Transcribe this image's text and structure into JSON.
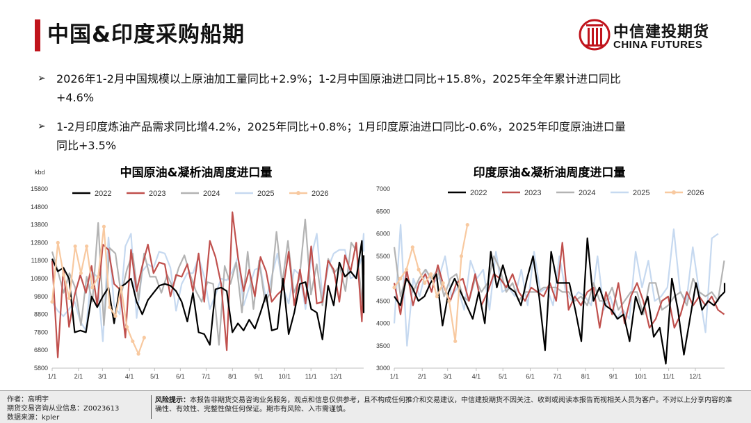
{
  "page_title": "中国&印度采购船期",
  "logo": {
    "cn": "中信建投期货",
    "en": "CHINA FUTURES"
  },
  "bullets": [
    {
      "line1": "2026年1-2月中国规模以上原油加工量同比+2.9%；1-2月中国原油进口同比+15.8%，2025年全年累计进口同比",
      "line2": "+4.6%"
    },
    {
      "line1": "1-2月印度炼油产品需求同比增4.2%，2025年同比+0.8%；1月印度原油进口同比-0.6%，2025年印度原油进口量",
      "line2": "同比+3.5%"
    }
  ],
  "footer": {
    "author": "作者：高明宇",
    "license": "期货交易咨询从业信息：Z0023613",
    "source": "数据来源：kpler",
    "risk_label": "风险提示：",
    "risk_text": "本报告非期货交易咨询业务服务，观点和信息仅供参考，且不构成任何推介和交易建议，中信建投期货不因关注、收到或阅读本报告而视相关人员为客户。不对以上分享内容的准确性、有效性、完整性做任何保证。期市有风险、入市需谨慎。"
  },
  "chart_data": [
    {
      "type": "line",
      "title": "中国原油&凝析油周度进口量",
      "ylabel": "kbd",
      "ylim": [
        5800,
        15800
      ],
      "yticks": [
        5800,
        6800,
        7800,
        8800,
        9800,
        10800,
        11800,
        12800,
        13800,
        14800,
        15800
      ],
      "xlim": [
        1,
        53
      ],
      "xtick_labels": [
        "1/1",
        "2/1",
        "3/1",
        "4/1",
        "5/1",
        "6/1",
        "7/1",
        "8/1",
        "9/1",
        "10/1",
        "11/1",
        "12/1"
      ],
      "xtick_weeks": [
        1,
        5.4,
        9.4,
        13.9,
        18.1,
        22.4,
        26.7,
        31.1,
        35.5,
        39.8,
        44.2,
        48.4
      ],
      "series": [
        {
          "name": "2022",
          "color": "#000000",
          "width": 2.2,
          "values": [
            11900,
            11200,
            11400,
            10800,
            7800,
            7900,
            7800,
            9800,
            9200,
            9800,
            10300,
            8300,
            10300,
            10500,
            10800,
            9500,
            8800,
            9600,
            10000,
            10400,
            10500,
            10400,
            10100,
            9500,
            8400,
            10000,
            7800,
            7700,
            7100,
            10200,
            10300,
            10100,
            7800,
            8300,
            7900,
            8500,
            8000,
            8900,
            9900,
            7900,
            8000,
            10800,
            7700,
            8900,
            10500,
            10600,
            9100,
            8900,
            7400,
            10400,
            9300,
            11700,
            10900,
            11200,
            10800,
            12900,
            8900,
            12100
          ],
          "step": 0.94
        },
        {
          "name": "2023",
          "color": "#c0504d",
          "width": 2.2,
          "values": [
            11800,
            6400,
            11400,
            8100,
            9900,
            11000,
            10000,
            11500,
            9300,
            12700,
            12400,
            10500,
            10200,
            7500,
            12400,
            10100,
            11500,
            12700,
            11100,
            11700,
            11600,
            9800,
            11000,
            10900,
            11600,
            10100,
            12200,
            9500,
            12900,
            12000,
            10500,
            6800,
            14500,
            12000,
            10100,
            11300,
            9800,
            12000,
            11200,
            9500,
            9900,
            10200,
            12300,
            9300,
            11300,
            9400,
            12600,
            9400,
            9500,
            11800,
            11300,
            9500,
            12100,
            11200,
            12800,
            8400,
            11800,
            11000
          ],
          "step": 0.94
        },
        {
          "name": "2024",
          "color": "#b3b3b3",
          "width": 2.2,
          "values": [
            12300,
            11200,
            10000,
            11100,
            10300,
            8200,
            10900,
            9500,
            13900,
            8200,
            12500,
            12200,
            9900,
            11300,
            12200,
            9600,
            12200,
            10900,
            10900,
            10000,
            11000,
            10300,
            11400,
            12100,
            11000,
            10100,
            9500,
            10600,
            10500,
            7100,
            11500,
            10500,
            11700,
            8900,
            12300,
            9100,
            11800,
            9500,
            10000,
            13400,
            10500,
            12900,
            10000,
            10800,
            14100,
            9900,
            11600,
            9300,
            11900,
            11100,
            11500,
            10100,
            12800,
            12300,
            9100
          ],
          "step": 0.96
        },
        {
          "name": "2025",
          "color": "#c6d9f0",
          "width": 2.2,
          "values": [
            9500,
            9000,
            8700,
            9100,
            9500,
            8400,
            7900,
            11200,
            10900,
            7300,
            13100,
            9300,
            8800,
            12600,
            13300,
            8600,
            11200,
            11600,
            11400,
            12300,
            12200,
            11400,
            9000,
            10500,
            11100,
            11100,
            12000,
            10900,
            9100,
            9900,
            10800,
            10700,
            11200,
            12000,
            9300,
            10300,
            11300,
            11400,
            9600,
            10900,
            12200,
            10300,
            9400,
            11300,
            11000,
            9100,
            12000,
            13300,
            9700,
            11400,
            12200,
            12400,
            12400,
            10800,
            11000,
            12000,
            13300,
            12300
          ],
          "step": 0.94
        },
        {
          "name": "2026",
          "color": "#f8c9a0",
          "width": 2.2,
          "marker": true,
          "values": [
            9500,
            12800,
            11000,
            9700,
            12600,
            11100,
            12600,
            10300,
            10900,
            13700,
            9200,
            8700,
            10300,
            8100,
            7300,
            6600,
            7500
          ],
          "step": 0.96
        }
      ]
    },
    {
      "type": "line",
      "title": "印度原油&凝析油周度进口量",
      "ylabel": "",
      "ylim": [
        3000,
        7000
      ],
      "yticks": [
        3000,
        3500,
        4000,
        4500,
        5000,
        5500,
        6000,
        6500,
        7000
      ],
      "xlim": [
        1,
        53
      ],
      "xtick_labels": [
        "1/1",
        "2/1",
        "3/1",
        "4/1",
        "5/1",
        "6/1",
        "7/1",
        "8/1",
        "9/1",
        "10/1",
        "11/1",
        "12/1"
      ],
      "xtick_weeks": [
        1,
        5.4,
        9.4,
        13.9,
        18.1,
        22.4,
        26.7,
        31.1,
        35.5,
        39.8,
        44.2,
        48.4
      ],
      "series": [
        {
          "name": "2022",
          "color": "#000000",
          "width": 2.2,
          "values": [
            4600,
            4400,
            5000,
            4800,
            4500,
            4600,
            4900,
            5100,
            3950,
            4700,
            5000,
            4700,
            4400,
            4100,
            4700,
            4000,
            5600,
            4800,
            5300,
            4800,
            4700,
            4400,
            5000,
            5500,
            4600,
            3400,
            5600,
            4900,
            4900,
            4900,
            4300,
            3600,
            5900,
            4500,
            4800,
            4400,
            4300,
            4100,
            4200,
            3600,
            4600,
            4200,
            4600,
            3700,
            3900,
            3100,
            5000,
            4300,
            3300,
            4100,
            4900,
            4300,
            4500,
            4400,
            4600,
            4700,
            4900
          ],
          "step": 0.95
        },
        {
          "name": "2023",
          "color": "#c0504d",
          "width": 2.2,
          "values": [
            4900,
            4200,
            5200,
            4400,
            4900,
            5100,
            4700,
            5300,
            4800,
            4500,
            4900,
            5000,
            4500,
            5100,
            4400,
            4700,
            5100,
            5000,
            4800,
            5100,
            4700,
            4500,
            4800,
            4700,
            4600,
            4900,
            4500,
            5800,
            4300,
            4600,
            4400,
            4700,
            4800,
            3900,
            4700,
            4200,
            4900,
            4000,
            4600,
            4900,
            4500,
            3900,
            4100,
            4500,
            4600,
            3900,
            4200,
            4700,
            4400,
            4600,
            4400,
            4600,
            4300,
            4200
          ],
          "step": 0.98
        },
        {
          "name": "2024",
          "color": "#b3b3b3",
          "width": 2.2,
          "values": [
            5700,
            4600,
            5100,
            4700,
            5000,
            5200,
            5000,
            5200,
            4600,
            5000,
            5100,
            4600,
            4500,
            5000,
            4700,
            4900,
            5500,
            5200,
            4700,
            4900,
            4500,
            4700,
            4700,
            4700,
            4800,
            4800,
            4800,
            4700,
            4700,
            4500,
            4600,
            4400,
            4900,
            4500,
            4500,
            4800,
            4300,
            4500,
            4700,
            4700,
            4200,
            4900,
            4900,
            4300,
            4400,
            4600,
            4700,
            4400,
            5000,
            4700,
            4600,
            4700,
            4500,
            5400
          ],
          "step": 0.98
        },
        {
          "name": "2025",
          "color": "#c6d9f0",
          "width": 2.2,
          "values": [
            4000,
            6200,
            3500,
            5000,
            4600,
            5200,
            4900,
            5000,
            5500,
            4600,
            4800,
            4300,
            5400,
            5000,
            5200,
            4300,
            5600,
            4700,
            4800,
            4600,
            5200,
            4400,
            5600,
            4700,
            4800,
            4400,
            5500,
            4700,
            4500,
            4700,
            4600,
            4400,
            5500,
            4300,
            4600,
            4100,
            4300,
            4100,
            5600,
            4800,
            5400,
            4500,
            4600,
            4800,
            6100,
            4700,
            4500,
            5700,
            4700,
            3800,
            5900,
            6000
          ],
          "step": 1.0
        },
        {
          "name": "2026",
          "color": "#f8c9a0",
          "width": 2.2,
          "marker": true,
          "values": [
            4800,
            5000,
            5200,
            5700,
            5200,
            4900,
            5100,
            4600,
            4900,
            4500,
            3600,
            5500,
            6200
          ],
          "step": 0.96
        }
      ]
    }
  ]
}
